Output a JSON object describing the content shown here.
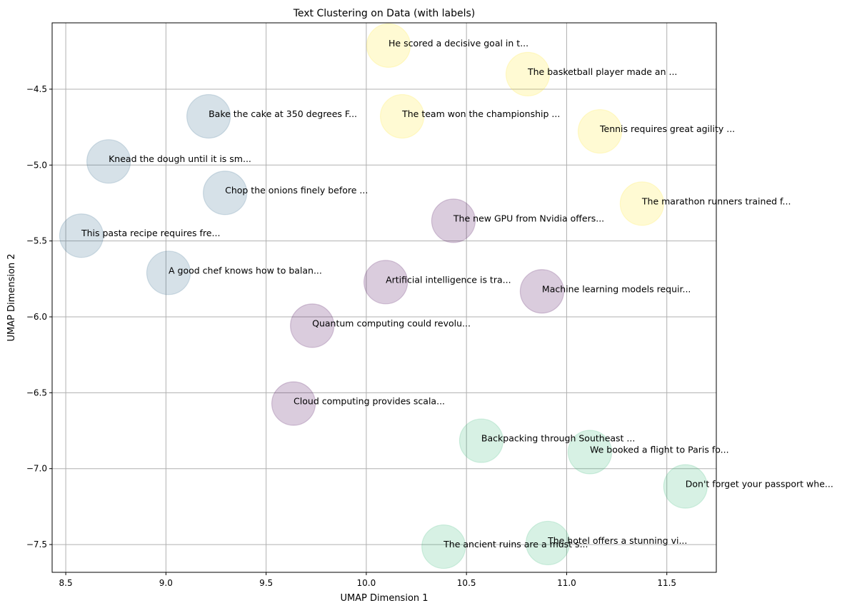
{
  "chart_data": {
    "type": "scatter",
    "title": "Text Clustering on Data (with labels)",
    "xlabel": "UMAP Dimension 1",
    "ylabel": "UMAP Dimension 2",
    "xlim": [
      8.432,
      11.747
    ],
    "ylim": [
      -7.683,
      -4.063
    ],
    "xticks": [
      8.5,
      9.0,
      9.5,
      10.0,
      10.5,
      11.0,
      11.5
    ],
    "xtick_labels": [
      "8.5",
      "9.0",
      "9.5",
      "10.0",
      "10.5",
      "11.0",
      "11.5"
    ],
    "yticks": [
      -4.5,
      -5.0,
      -5.5,
      -6.0,
      -6.5,
      -7.0,
      -7.5
    ],
    "ytick_labels": [
      "−4.5",
      "−5.0",
      "−5.5",
      "−6.0",
      "−6.5",
      "−7.0",
      "−7.5"
    ],
    "grid": true,
    "colormap": "viridis",
    "cluster_colors": [
      "#440154",
      "#31688e",
      "#35b779",
      "#fde725"
    ],
    "points": [
      {
        "x": 10.111,
        "y": -4.213,
        "cluster": 3,
        "label": "He scored a decisive goal in t..."
      },
      {
        "x": 10.806,
        "y": -4.401,
        "cluster": 3,
        "label": "The basketball player made an ..."
      },
      {
        "x": 10.179,
        "y": -4.679,
        "cluster": 3,
        "label": "The team won the championship ..."
      },
      {
        "x": 11.166,
        "y": -4.778,
        "cluster": 3,
        "label": "Tennis requires great agility ..."
      },
      {
        "x": 11.376,
        "y": -5.254,
        "cluster": 3,
        "label": "The marathon runners trained f..."
      },
      {
        "x": 9.213,
        "y": -4.679,
        "cluster": 1,
        "label": "Bake the cake at 350 degrees F..."
      },
      {
        "x": 8.714,
        "y": -4.976,
        "cluster": 1,
        "label": "Knead the dough until it is sm..."
      },
      {
        "x": 9.295,
        "y": -5.183,
        "cluster": 1,
        "label": "Chop the onions finely before ..."
      },
      {
        "x": 8.578,
        "y": -5.465,
        "cluster": 1,
        "label": "This pasta recipe requires fre..."
      },
      {
        "x": 9.013,
        "y": -5.71,
        "cluster": 1,
        "label": "A good chef knows how to balan..."
      },
      {
        "x": 10.435,
        "y": -5.367,
        "cluster": 0,
        "label": "The new GPU from Nvidia offers..."
      },
      {
        "x": 10.097,
        "y": -5.771,
        "cluster": 0,
        "label": "Artificial intelligence is tra..."
      },
      {
        "x": 10.877,
        "y": -5.832,
        "cluster": 0,
        "label": "Machine learning models requir..."
      },
      {
        "x": 9.73,
        "y": -6.058,
        "cluster": 0,
        "label": "Quantum computing could revolu..."
      },
      {
        "x": 9.637,
        "y": -6.571,
        "cluster": 0,
        "label": "Cloud computing provides scala..."
      },
      {
        "x": 10.574,
        "y": -6.816,
        "cluster": 2,
        "label": "Backpacking through Southeast ..."
      },
      {
        "x": 11.116,
        "y": -6.891,
        "cluster": 2,
        "label": "We booked a flight to Paris fo..."
      },
      {
        "x": 11.593,
        "y": -7.117,
        "cluster": 2,
        "label": "Don't forget your passport whe..."
      },
      {
        "x": 10.386,
        "y": -7.514,
        "cluster": 2,
        "label": "The ancient ruins are a must s..."
      },
      {
        "x": 10.906,
        "y": -7.49,
        "cluster": 2,
        "label": "The hotel offers a stunning vi..."
      }
    ]
  }
}
